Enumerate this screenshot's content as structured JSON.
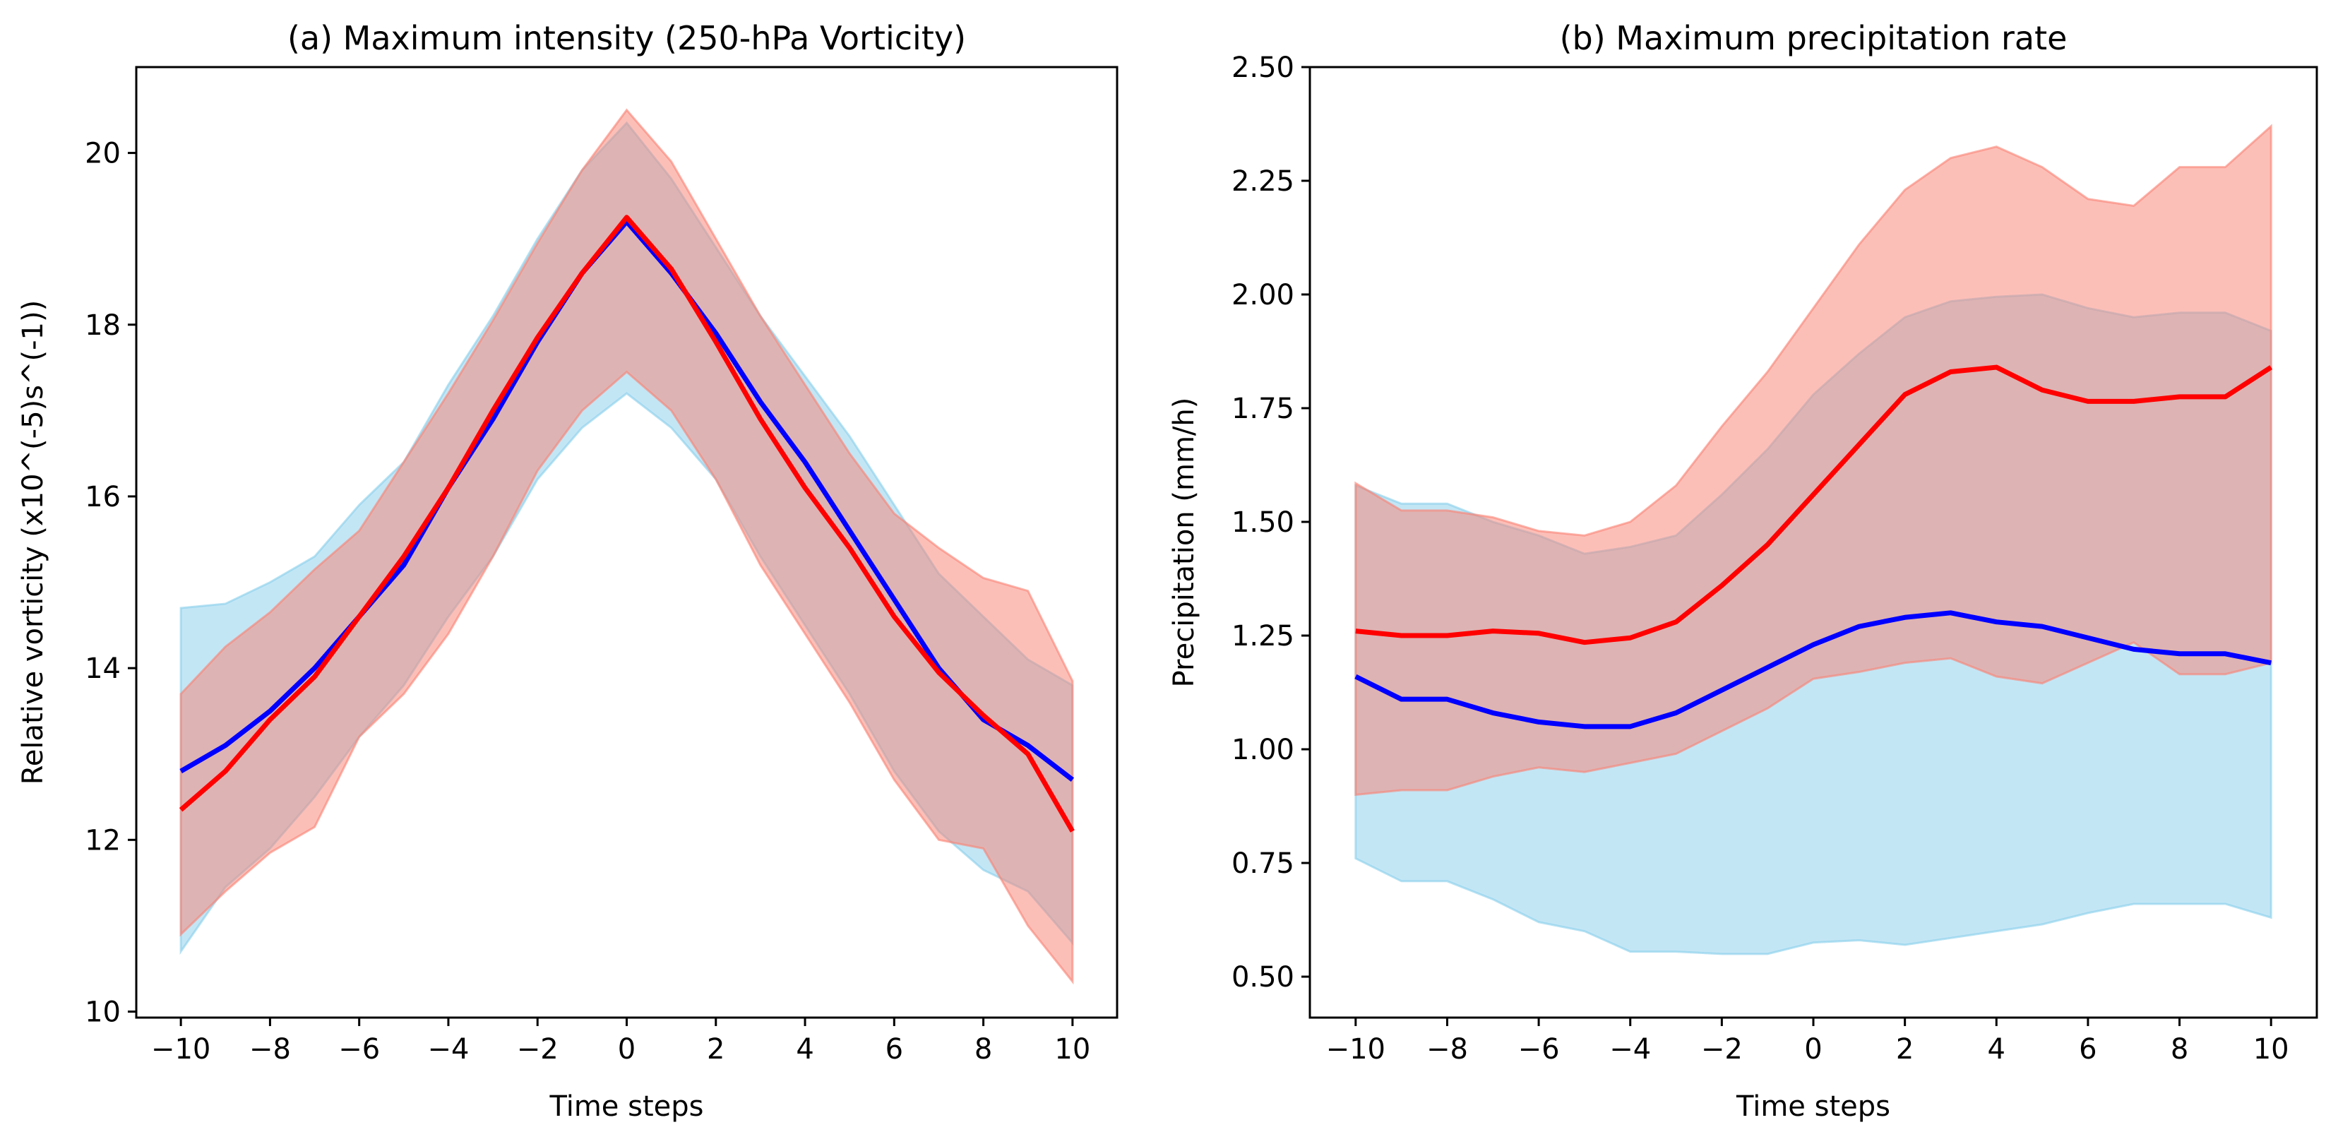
{
  "chart_data": [
    {
      "type": "line",
      "title": "(a) Maximum intensity (250-hPa Vorticity)",
      "xlabel": "Time steps",
      "ylabel": "Relative vorticity (x10^(-5)s^(-1))",
      "xlim": [
        -11,
        11
      ],
      "ylim": [
        9.93,
        21.0
      ],
      "xticks": [
        -10,
        -8,
        -6,
        -4,
        -2,
        0,
        2,
        4,
        6,
        8,
        10
      ],
      "xtick_labels": [
        "−10",
        "−8",
        "−6",
        "−4",
        "−2",
        "0",
        "2",
        "4",
        "6",
        "8",
        "10"
      ],
      "yticks": [
        10,
        12,
        14,
        16,
        18,
        20
      ],
      "ytick_labels": [
        "10",
        "12",
        "14",
        "16",
        "18",
        "20"
      ],
      "grid": false,
      "x": [
        -10,
        -9,
        -8,
        -7,
        -6,
        -5,
        -4,
        -3,
        -2,
        -1,
        0,
        1,
        2,
        3,
        4,
        5,
        6,
        7,
        8,
        9,
        10
      ],
      "series": [
        {
          "name": "blue",
          "color": "#0000ff",
          "band_color": "#87ceeb",
          "values": [
            12.8,
            13.1,
            13.5,
            14.0,
            14.6,
            15.2,
            16.1,
            16.9,
            17.8,
            18.6,
            19.2,
            18.6,
            17.9,
            17.1,
            16.4,
            15.6,
            14.8,
            14.0,
            13.4,
            13.1,
            12.7
          ],
          "upper": [
            14.7,
            14.75,
            15.0,
            15.3,
            15.9,
            16.4,
            17.3,
            18.1,
            19.0,
            19.8,
            20.35,
            19.7,
            18.9,
            18.1,
            17.4,
            16.7,
            15.9,
            15.1,
            14.6,
            14.1,
            13.8
          ],
          "lower": [
            10.7,
            11.45,
            11.9,
            12.5,
            13.2,
            13.8,
            14.6,
            15.3,
            16.2,
            16.8,
            17.2,
            16.8,
            16.2,
            15.3,
            14.5,
            13.7,
            12.8,
            12.1,
            11.65,
            11.4,
            10.8
          ]
        },
        {
          "name": "red",
          "color": "#ff0000",
          "band_color": "#fa8072",
          "values": [
            12.35,
            12.8,
            13.4,
            13.9,
            14.6,
            15.3,
            16.1,
            17.0,
            17.85,
            18.6,
            19.25,
            18.65,
            17.8,
            16.9,
            16.1,
            15.4,
            14.6,
            13.95,
            13.45,
            13.0,
            12.1
          ],
          "upper": [
            13.7,
            14.25,
            14.65,
            15.15,
            15.6,
            16.4,
            17.2,
            18.05,
            18.95,
            19.8,
            20.5,
            19.9,
            19.0,
            18.1,
            17.3,
            16.5,
            15.8,
            15.4,
            15.05,
            14.9,
            13.85
          ],
          "lower": [
            10.9,
            11.4,
            11.85,
            12.15,
            13.2,
            13.7,
            14.4,
            15.3,
            16.3,
            17.0,
            17.45,
            17.0,
            16.2,
            15.2,
            14.4,
            13.6,
            12.7,
            12.0,
            11.9,
            11.0,
            10.35
          ]
        }
      ]
    },
    {
      "type": "line",
      "title": "(b) Maximum precipitation rate",
      "xlabel": "Time steps",
      "ylabel": "Precipitation (mm/h)",
      "xlim": [
        -11,
        11
      ],
      "ylim": [
        0.41,
        2.5
      ],
      "xticks": [
        -10,
        -8,
        -6,
        -4,
        -2,
        0,
        2,
        4,
        6,
        8,
        10
      ],
      "xtick_labels": [
        "−10",
        "−8",
        "−6",
        "−4",
        "−2",
        "0",
        "2",
        "4",
        "6",
        "8",
        "10"
      ],
      "yticks": [
        0.5,
        0.75,
        1.0,
        1.25,
        1.5,
        1.75,
        2.0,
        2.25,
        2.5
      ],
      "ytick_labels": [
        "0.50",
        "0.75",
        "1.00",
        "1.25",
        "1.50",
        "1.75",
        "2.00",
        "2.25",
        "2.50"
      ],
      "grid": false,
      "x": [
        -10,
        -9,
        -8,
        -7,
        -6,
        -5,
        -4,
        -3,
        -2,
        -1,
        0,
        1,
        2,
        3,
        4,
        5,
        6,
        7,
        8,
        9,
        10
      ],
      "series": [
        {
          "name": "blue",
          "color": "#0000ff",
          "band_color": "#87ceeb",
          "values": [
            1.16,
            1.11,
            1.11,
            1.08,
            1.06,
            1.05,
            1.05,
            1.08,
            1.13,
            1.18,
            1.23,
            1.27,
            1.29,
            1.3,
            1.28,
            1.27,
            1.245,
            1.22,
            1.21,
            1.21,
            1.19
          ],
          "upper": [
            1.58,
            1.54,
            1.54,
            1.5,
            1.47,
            1.43,
            1.445,
            1.47,
            1.56,
            1.66,
            1.78,
            1.87,
            1.95,
            1.985,
            1.995,
            2.0,
            1.97,
            1.95,
            1.96,
            1.96,
            1.92
          ],
          "lower": [
            0.76,
            0.71,
            0.71,
            0.67,
            0.62,
            0.6,
            0.555,
            0.555,
            0.55,
            0.55,
            0.575,
            0.58,
            0.57,
            0.585,
            0.6,
            0.615,
            0.64,
            0.66,
            0.66,
            0.66,
            0.63
          ]
        },
        {
          "name": "red",
          "color": "#ff0000",
          "band_color": "#fa8072",
          "values": [
            1.26,
            1.25,
            1.25,
            1.26,
            1.255,
            1.235,
            1.245,
            1.28,
            1.36,
            1.45,
            1.56,
            1.67,
            1.78,
            1.83,
            1.84,
            1.79,
            1.765,
            1.765,
            1.775,
            1.775,
            1.84
          ],
          "upper": [
            1.585,
            1.525,
            1.525,
            1.51,
            1.48,
            1.47,
            1.5,
            1.58,
            1.71,
            1.83,
            1.97,
            2.11,
            2.23,
            2.3,
            2.325,
            2.28,
            2.21,
            2.195,
            2.28,
            2.28,
            2.37
          ],
          "lower": [
            0.9,
            0.91,
            0.91,
            0.94,
            0.96,
            0.95,
            0.97,
            0.99,
            1.04,
            1.09,
            1.155,
            1.17,
            1.19,
            1.2,
            1.16,
            1.145,
            1.19,
            1.235,
            1.165,
            1.165,
            1.19
          ]
        }
      ]
    }
  ]
}
